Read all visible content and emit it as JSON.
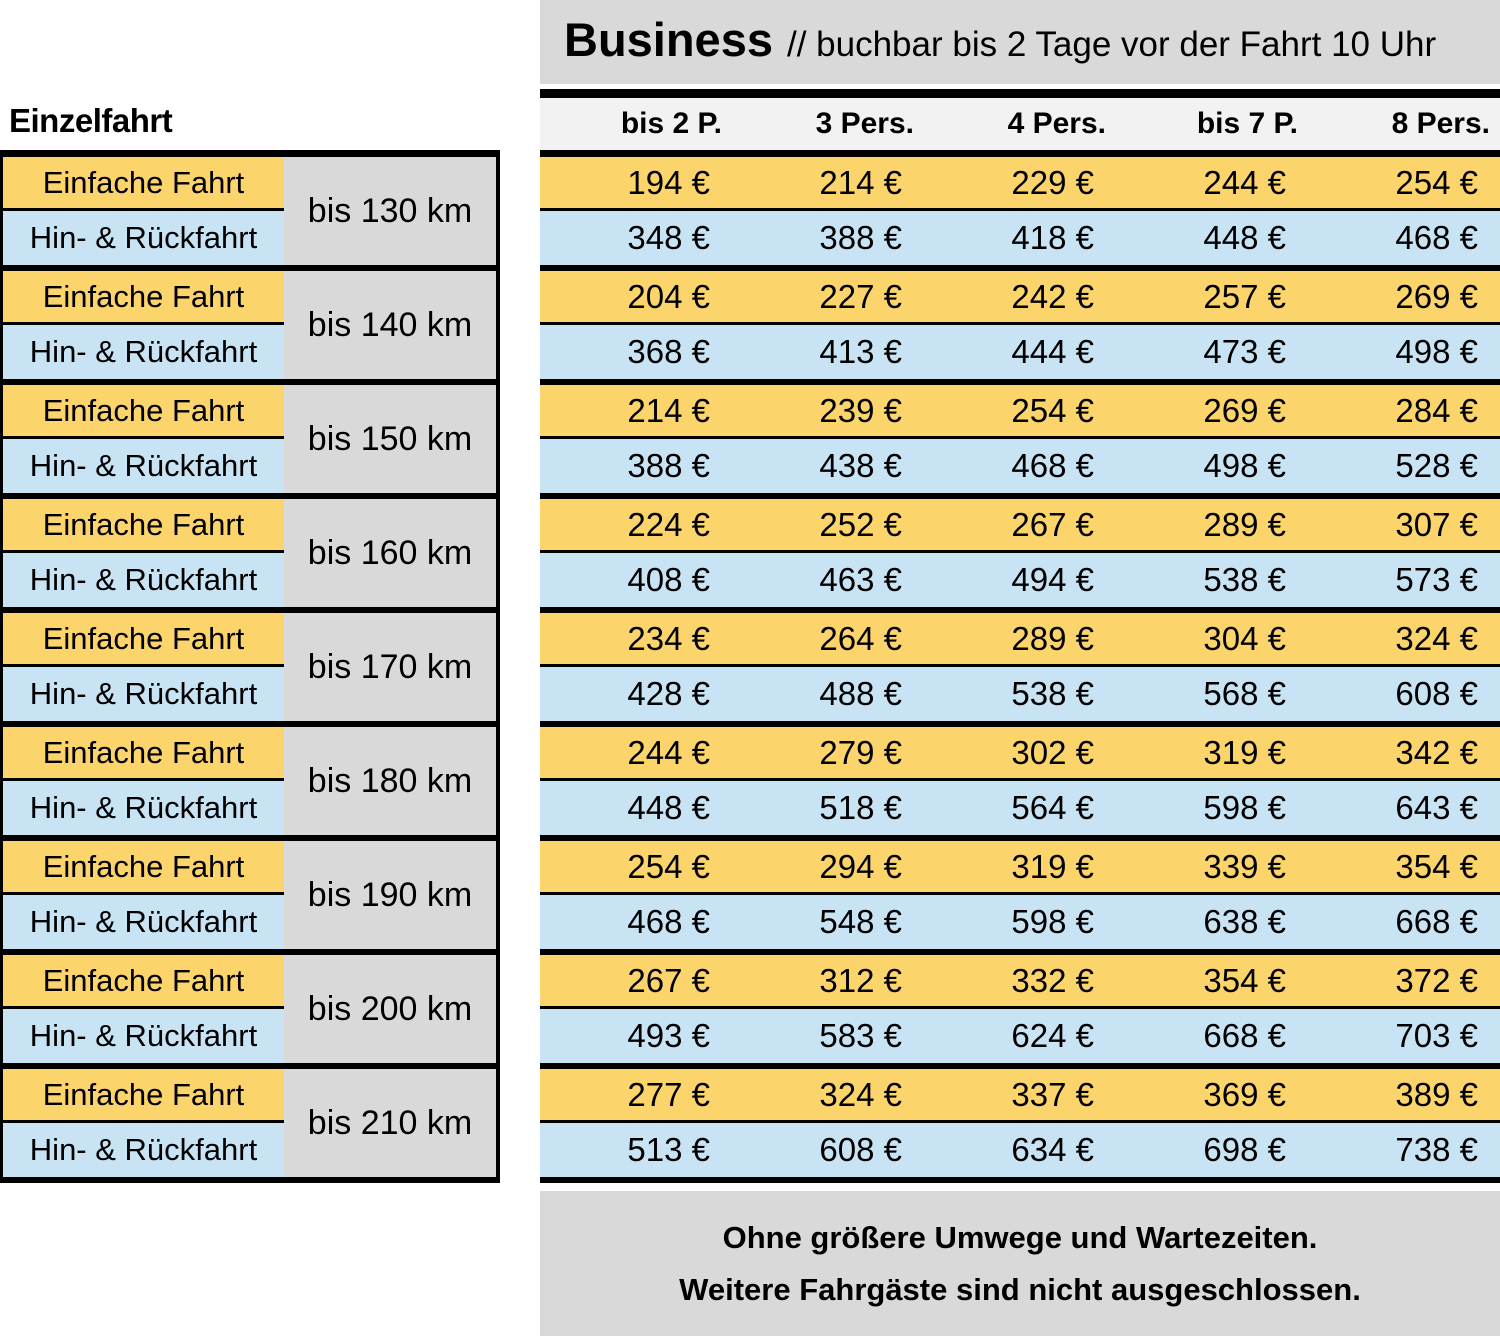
{
  "left": {
    "title": "Einzelfahrt"
  },
  "header": {
    "title": "Business",
    "subtitle": "// buchbar bis 2 Tage vor der Fahrt 10 Uhr"
  },
  "columns": [
    "bis 2 P.",
    "3 Pers.",
    "4 Pers.",
    "bis 7 P.",
    "8 Pers."
  ],
  "table": {
    "row_labels": {
      "single": "Einfache Fahrt",
      "return": "Hin- & Rückfahrt"
    },
    "groups": [
      {
        "distance": "bis 130 km",
        "single": [
          "194 €",
          "214 €",
          "229 €",
          "244 €",
          "254 €"
        ],
        "return": [
          "348 €",
          "388 €",
          "418 €",
          "448 €",
          "468 €"
        ]
      },
      {
        "distance": "bis 140 km",
        "single": [
          "204 €",
          "227 €",
          "242 €",
          "257 €",
          "269 €"
        ],
        "return": [
          "368 €",
          "413 €",
          "444 €",
          "473 €",
          "498 €"
        ]
      },
      {
        "distance": "bis 150 km",
        "single": [
          "214 €",
          "239 €",
          "254 €",
          "269 €",
          "284 €"
        ],
        "return": [
          "388 €",
          "438 €",
          "468 €",
          "498 €",
          "528 €"
        ]
      },
      {
        "distance": "bis 160 km",
        "single": [
          "224 €",
          "252 €",
          "267 €",
          "289 €",
          "307 €"
        ],
        "return": [
          "408 €",
          "463 €",
          "494 €",
          "538 €",
          "573 €"
        ]
      },
      {
        "distance": "bis 170 km",
        "single": [
          "234 €",
          "264 €",
          "289 €",
          "304 €",
          "324 €"
        ],
        "return": [
          "428 €",
          "488 €",
          "538 €",
          "568 €",
          "608 €"
        ]
      },
      {
        "distance": "bis 180 km",
        "single": [
          "244 €",
          "279 €",
          "302 €",
          "319 €",
          "342 €"
        ],
        "return": [
          "448 €",
          "518 €",
          "564 €",
          "598 €",
          "643 €"
        ]
      },
      {
        "distance": "bis 190 km",
        "single": [
          "254 €",
          "294 €",
          "319 €",
          "339 €",
          "354 €"
        ],
        "return": [
          "468 €",
          "548 €",
          "598 €",
          "638 €",
          "668 €"
        ]
      },
      {
        "distance": "bis 200 km",
        "single": [
          "267 €",
          "312 €",
          "332 €",
          "354 €",
          "372 €"
        ],
        "return": [
          "493 €",
          "583 €",
          "624 €",
          "668 €",
          "703 €"
        ]
      },
      {
        "distance": "bis 210 km",
        "single": [
          "277 €",
          "324 €",
          "337 €",
          "369 €",
          "389 €"
        ],
        "return": [
          "513 €",
          "608 €",
          "634 €",
          "698 €",
          "738 €"
        ]
      }
    ]
  },
  "footer": {
    "lines": [
      "Ohne größere Umwege und Wartezeiten.",
      "Weitere Fahrgäste sind nicht ausgeschlossen."
    ]
  },
  "colors": {
    "yellow": "#FBD46B",
    "blue": "#C8E4F4",
    "grey": "#D9D9D9",
    "header_bg": "#F2F2F2",
    "ink": "#000000"
  }
}
